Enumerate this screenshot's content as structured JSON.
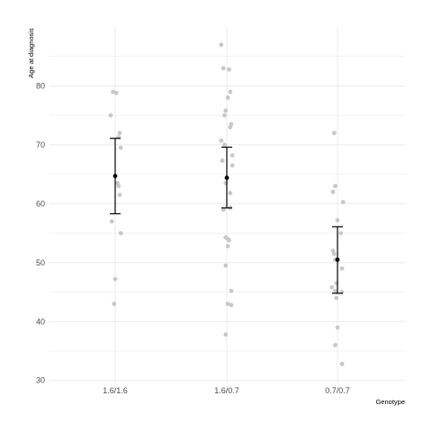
{
  "chart_data": {
    "type": "scatter",
    "title": "",
    "xlabel": "Genotype",
    "ylabel": "Age at diagnosis",
    "categories": [
      "1.6/1.6",
      "1.6/0.7",
      "0.7/0.7"
    ],
    "ylim": [
      29.5,
      90
    ],
    "yticks": [
      30,
      40,
      50,
      60,
      70,
      80
    ],
    "grid": true,
    "legend": "none",
    "colors": {
      "points": "#c8c8c8",
      "summary": "#000000",
      "grid": "#ebebeb"
    },
    "series": [
      {
        "category": "1.6/1.6",
        "points": [
          [
            -0.02,
            79.0
          ],
          [
            0.01,
            78.8
          ],
          [
            -0.04,
            75.0
          ],
          [
            0.04,
            72.0
          ],
          [
            0.03,
            71.3
          ],
          [
            0.05,
            69.5
          ],
          [
            0.02,
            63.5
          ],
          [
            0.03,
            63.0
          ],
          [
            0.04,
            61.5
          ],
          [
            -0.03,
            57.0
          ],
          [
            0.05,
            55.0
          ],
          [
            0.0,
            47.2
          ],
          [
            -0.01,
            43.0
          ]
        ],
        "mean": 64.7,
        "lower": 58.3,
        "upper": 71.1
      },
      {
        "category": "1.6/0.7",
        "points": [
          [
            -0.05,
            87.0
          ],
          [
            -0.03,
            83.0
          ],
          [
            0.02,
            82.8
          ],
          [
            0.03,
            79.0
          ],
          [
            0.01,
            78.0
          ],
          [
            -0.01,
            75.8
          ],
          [
            -0.02,
            75.0
          ],
          [
            0.04,
            73.5
          ],
          [
            0.03,
            73.0
          ],
          [
            -0.05,
            70.7
          ],
          [
            -0.02,
            70.0
          ],
          [
            0.05,
            68.2
          ],
          [
            -0.04,
            67.3
          ],
          [
            0.05,
            66.5
          ],
          [
            -0.01,
            63.5
          ],
          [
            0.03,
            61.8
          ],
          [
            -0.03,
            59.0
          ],
          [
            0.03,
            59.3
          ],
          [
            -0.01,
            54.3
          ],
          [
            0.01,
            54.0
          ],
          [
            0.02,
            53.8
          ],
          [
            0.01,
            52.8
          ],
          [
            -0.01,
            49.5
          ],
          [
            0.04,
            45.2
          ],
          [
            0.01,
            43.0
          ],
          [
            0.04,
            42.8
          ],
          [
            -0.01,
            37.8
          ]
        ],
        "mean": 64.4,
        "lower": 59.3,
        "upper": 69.6
      },
      {
        "category": "0.7/0.7",
        "points": [
          [
            -0.03,
            72.0
          ],
          [
            -0.02,
            63.0
          ],
          [
            -0.04,
            62.0
          ],
          [
            0.05,
            60.3
          ],
          [
            0.0,
            57.2
          ],
          [
            0.03,
            55.0
          ],
          [
            -0.04,
            52.0
          ],
          [
            -0.03,
            51.5
          ],
          [
            -0.02,
            50.5
          ],
          [
            0.04,
            49.0
          ],
          [
            -0.01,
            46.5
          ],
          [
            -0.05,
            45.8
          ],
          [
            -0.02,
            45.2
          ],
          [
            0.04,
            45.0
          ],
          [
            -0.01,
            44.0
          ],
          [
            0.0,
            39.0
          ],
          [
            -0.02,
            36.0
          ],
          [
            0.04,
            32.8
          ]
        ],
        "mean": 50.5,
        "lower": 44.8,
        "upper": 56.1
      }
    ]
  }
}
